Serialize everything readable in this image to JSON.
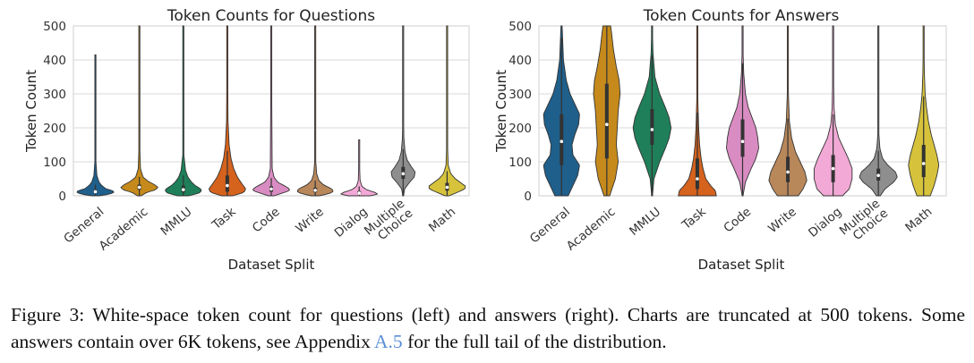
{
  "caption": {
    "before_link": "Figure 3: White-space token count for questions (left) and answers (right). Charts are truncated at 500 tokens. Some answers contain over 6K tokens, see Appendix ",
    "link": "A.5",
    "after_link": " for the full tail of the distribution."
  },
  "colors": {
    "General": "#1f5f8b",
    "Academic": "#c58a1b",
    "MMLU": "#1e7f5a",
    "Task": "#d5621d",
    "Code": "#d98cc2",
    "Write": "#b8875a",
    "Dialog": "#f2a9d6",
    "Multiple Choice": "#8e8e8e",
    "Math": "#d7c33b"
  },
  "chart_data": [
    {
      "type": "violin",
      "title": "Token Counts for Questions",
      "xlabel": "Dataset Split",
      "ylabel": "Token Count",
      "ylim": [
        0,
        500
      ],
      "yticks": [
        0,
        100,
        200,
        300,
        400,
        500
      ],
      "grid": true,
      "categories": [
        "General",
        "Academic",
        "MMLU",
        "Task",
        "Code",
        "Write",
        "Dialog",
        "Multiple Choice",
        "Math"
      ],
      "tick_labels": [
        [
          "General"
        ],
        [
          "Academic"
        ],
        [
          "MMLU"
        ],
        [
          "Task"
        ],
        [
          "Code"
        ],
        [
          "Write"
        ],
        [
          "Dialog"
        ],
        [
          "Multiple",
          "Choice"
        ],
        [
          "Math"
        ]
      ],
      "series": [
        {
          "category": "General",
          "max": 415,
          "median": 12,
          "q1": 8,
          "q3": 18,
          "profile": [
            [
              0,
              0.2
            ],
            [
              5,
              0.8
            ],
            [
              10,
              1.0
            ],
            [
              15,
              0.95
            ],
            [
              20,
              0.6
            ],
            [
              30,
              0.35
            ],
            [
              40,
              0.2
            ],
            [
              60,
              0.08
            ],
            [
              100,
              0.03
            ],
            [
              200,
              0.015
            ],
            [
              415,
              0.005
            ]
          ]
        },
        {
          "category": "Academic",
          "max": 500,
          "median": 25,
          "q1": 18,
          "q3": 33,
          "profile": [
            [
              0,
              0.1
            ],
            [
              10,
              0.4
            ],
            [
              18,
              0.9
            ],
            [
              25,
              1.0
            ],
            [
              32,
              0.85
            ],
            [
              42,
              0.5
            ],
            [
              55,
              0.2
            ],
            [
              80,
              0.06
            ],
            [
              150,
              0.02
            ],
            [
              500,
              0.005
            ]
          ]
        },
        {
          "category": "MMLU",
          "max": 500,
          "median": 18,
          "q1": 10,
          "q3": 30,
          "profile": [
            [
              0,
              0.3
            ],
            [
              8,
              0.85
            ],
            [
              15,
              1.0
            ],
            [
              22,
              0.9
            ],
            [
              30,
              0.65
            ],
            [
              40,
              0.45
            ],
            [
              55,
              0.25
            ],
            [
              75,
              0.12
            ],
            [
              120,
              0.03
            ],
            [
              500,
              0.005
            ]
          ]
        },
        {
          "category": "Task",
          "max": 500,
          "median": 30,
          "q1": 12,
          "q3": 60,
          "profile": [
            [
              0,
              0.3
            ],
            [
              10,
              0.9
            ],
            [
              20,
              1.0
            ],
            [
              35,
              0.8
            ],
            [
              55,
              0.55
            ],
            [
              80,
              0.35
            ],
            [
              110,
              0.2
            ],
            [
              150,
              0.1
            ],
            [
              220,
              0.04
            ],
            [
              500,
              0.005
            ]
          ]
        },
        {
          "category": "Code",
          "max": 500,
          "median": 20,
          "q1": 12,
          "q3": 28,
          "profile": [
            [
              0,
              0.15
            ],
            [
              8,
              0.6
            ],
            [
              15,
              1.0
            ],
            [
              22,
              0.95
            ],
            [
              30,
              0.7
            ],
            [
              40,
              0.35
            ],
            [
              55,
              0.15
            ],
            [
              80,
              0.05
            ],
            [
              500,
              0.005
            ]
          ]
        },
        {
          "category": "Write",
          "max": 500,
          "median": 16,
          "q1": 10,
          "q3": 24,
          "profile": [
            [
              0,
              0.2
            ],
            [
              7,
              0.8
            ],
            [
              14,
              1.0
            ],
            [
              22,
              0.85
            ],
            [
              32,
              0.45
            ],
            [
              45,
              0.2
            ],
            [
              65,
              0.08
            ],
            [
              100,
              0.03
            ],
            [
              500,
              0.005
            ]
          ]
        },
        {
          "category": "Dialog",
          "max": 165,
          "median": 8,
          "q1": 5,
          "q3": 14,
          "profile": [
            [
              0,
              0.6
            ],
            [
              5,
              1.0
            ],
            [
              10,
              0.85
            ],
            [
              18,
              0.4
            ],
            [
              28,
              0.15
            ],
            [
              45,
              0.05
            ],
            [
              90,
              0.02
            ],
            [
              165,
              0.005
            ]
          ]
        },
        {
          "category": "Multiple Choice",
          "max": 500,
          "median": 65,
          "q1": 50,
          "q3": 85,
          "profile": [
            [
              0,
              0.02
            ],
            [
              20,
              0.08
            ],
            [
              40,
              0.35
            ],
            [
              55,
              0.6
            ],
            [
              70,
              0.65
            ],
            [
              85,
              0.45
            ],
            [
              105,
              0.22
            ],
            [
              130,
              0.1
            ],
            [
              170,
              0.04
            ],
            [
              260,
              0.01
            ],
            [
              500,
              0.005
            ]
          ]
        },
        {
          "category": "Math",
          "max": 500,
          "median": 25,
          "q1": 15,
          "q3": 38,
          "profile": [
            [
              0,
              0.1
            ],
            [
              10,
              0.55
            ],
            [
              20,
              0.95
            ],
            [
              28,
              1.0
            ],
            [
              38,
              0.75
            ],
            [
              50,
              0.45
            ],
            [
              65,
              0.2
            ],
            [
              90,
              0.06
            ],
            [
              150,
              0.02
            ],
            [
              500,
              0.005
            ]
          ]
        }
      ]
    },
    {
      "type": "violin",
      "title": "Token Counts for Answers",
      "xlabel": "Dataset Split",
      "ylabel": "Token Count",
      "ylim": [
        0,
        500
      ],
      "yticks": [
        0,
        100,
        200,
        300,
        400,
        500
      ],
      "grid": true,
      "categories": [
        "General",
        "Academic",
        "MMLU",
        "Task",
        "Code",
        "Write",
        "Dialog",
        "Multiple Choice",
        "Math"
      ],
      "tick_labels": [
        [
          "General"
        ],
        [
          "Academic"
        ],
        [
          "MMLU"
        ],
        [
          "Task"
        ],
        [
          "Code"
        ],
        [
          "Write"
        ],
        [
          "Dialog"
        ],
        [
          "Multiple",
          "Choice"
        ],
        [
          "Math"
        ]
      ],
      "series": [
        {
          "category": "General",
          "max": 500,
          "median": 160,
          "q1": 90,
          "q3": 240,
          "profile": [
            [
              0,
              0.35
            ],
            [
              30,
              0.6
            ],
            [
              60,
              0.85
            ],
            [
              90,
              0.95
            ],
            [
              120,
              0.6
            ],
            [
              150,
              0.55
            ],
            [
              180,
              0.7
            ],
            [
              210,
              0.9
            ],
            [
              240,
              0.95
            ],
            [
              270,
              0.7
            ],
            [
              300,
              0.45
            ],
            [
              340,
              0.25
            ],
            [
              400,
              0.1
            ],
            [
              500,
              0.03
            ]
          ]
        },
        {
          "category": "Academic",
          "max": 500,
          "median": 210,
          "q1": 110,
          "q3": 330,
          "profile": [
            [
              0,
              0.15
            ],
            [
              50,
              0.45
            ],
            [
              100,
              0.6
            ],
            [
              150,
              0.5
            ],
            [
              200,
              0.55
            ],
            [
              250,
              0.6
            ],
            [
              300,
              0.7
            ],
            [
              340,
              0.65
            ],
            [
              380,
              0.5
            ],
            [
              430,
              0.35
            ],
            [
              480,
              0.25
            ],
            [
              500,
              0.2
            ]
          ]
        },
        {
          "category": "MMLU",
          "max": 500,
          "median": 195,
          "q1": 150,
          "q3": 255,
          "profile": [
            [
              0,
              0.02
            ],
            [
              50,
              0.1
            ],
            [
              100,
              0.4
            ],
            [
              140,
              0.7
            ],
            [
              170,
              0.9
            ],
            [
              200,
              1.0
            ],
            [
              230,
              0.9
            ],
            [
              260,
              0.7
            ],
            [
              300,
              0.4
            ],
            [
              350,
              0.15
            ],
            [
              420,
              0.05
            ],
            [
              500,
              0.01
            ]
          ]
        },
        {
          "category": "Task",
          "max": 500,
          "median": 50,
          "q1": 20,
          "q3": 110,
          "profile": [
            [
              0,
              1.0
            ],
            [
              15,
              0.95
            ],
            [
              30,
              0.7
            ],
            [
              50,
              0.45
            ],
            [
              80,
              0.3
            ],
            [
              110,
              0.2
            ],
            [
              150,
              0.12
            ],
            [
              200,
              0.07
            ],
            [
              280,
              0.03
            ],
            [
              380,
              0.015
            ],
            [
              500,
              0.005
            ]
          ]
        },
        {
          "category": "Code",
          "max": 500,
          "median": 160,
          "q1": 115,
          "q3": 225,
          "profile": [
            [
              0,
              0.02
            ],
            [
              40,
              0.15
            ],
            [
              80,
              0.45
            ],
            [
              110,
              0.7
            ],
            [
              140,
              0.85
            ],
            [
              170,
              0.8
            ],
            [
              200,
              0.7
            ],
            [
              230,
              0.5
            ],
            [
              260,
              0.3
            ],
            [
              300,
              0.15
            ],
            [
              360,
              0.06
            ],
            [
              430,
              0.02
            ],
            [
              500,
              0.01
            ]
          ]
        },
        {
          "category": "Write",
          "max": 500,
          "median": 70,
          "q1": 40,
          "q3": 115,
          "profile": [
            [
              0,
              0.55
            ],
            [
              20,
              0.8
            ],
            [
              45,
              1.0
            ],
            [
              70,
              0.9
            ],
            [
              100,
              0.65
            ],
            [
              130,
              0.4
            ],
            [
              170,
              0.2
            ],
            [
              220,
              0.08
            ],
            [
              300,
              0.03
            ],
            [
              500,
              0.005
            ]
          ]
        },
        {
          "category": "Dialog",
          "max": 500,
          "median": 80,
          "q1": 40,
          "q3": 120,
          "profile": [
            [
              0,
              0.5
            ],
            [
              20,
              0.85
            ],
            [
              50,
              1.0
            ],
            [
              80,
              1.0
            ],
            [
              110,
              0.8
            ],
            [
              140,
              0.55
            ],
            [
              170,
              0.3
            ],
            [
              210,
              0.12
            ],
            [
              260,
              0.05
            ],
            [
              350,
              0.02
            ],
            [
              500,
              0.005
            ]
          ]
        },
        {
          "category": "Multiple Choice",
          "max": 500,
          "median": 60,
          "q1": 45,
          "q3": 80,
          "profile": [
            [
              0,
              0.1
            ],
            [
              20,
              0.35
            ],
            [
              40,
              0.8
            ],
            [
              55,
              1.0
            ],
            [
              70,
              0.9
            ],
            [
              90,
              0.5
            ],
            [
              110,
              0.22
            ],
            [
              140,
              0.08
            ],
            [
              180,
              0.03
            ],
            [
              260,
              0.01
            ],
            [
              500,
              0.005
            ]
          ]
        },
        {
          "category": "Math",
          "max": 500,
          "median": 95,
          "q1": 55,
          "q3": 150,
          "profile": [
            [
              0,
              0.35
            ],
            [
              30,
              0.55
            ],
            [
              60,
              0.7
            ],
            [
              90,
              0.8
            ],
            [
              120,
              0.7
            ],
            [
              150,
              0.55
            ],
            [
              180,
              0.4
            ],
            [
              220,
              0.25
            ],
            [
              260,
              0.15
            ],
            [
              300,
              0.08
            ],
            [
              360,
              0.04
            ],
            [
              430,
              0.02
            ],
            [
              500,
              0.01
            ]
          ]
        }
      ]
    }
  ]
}
